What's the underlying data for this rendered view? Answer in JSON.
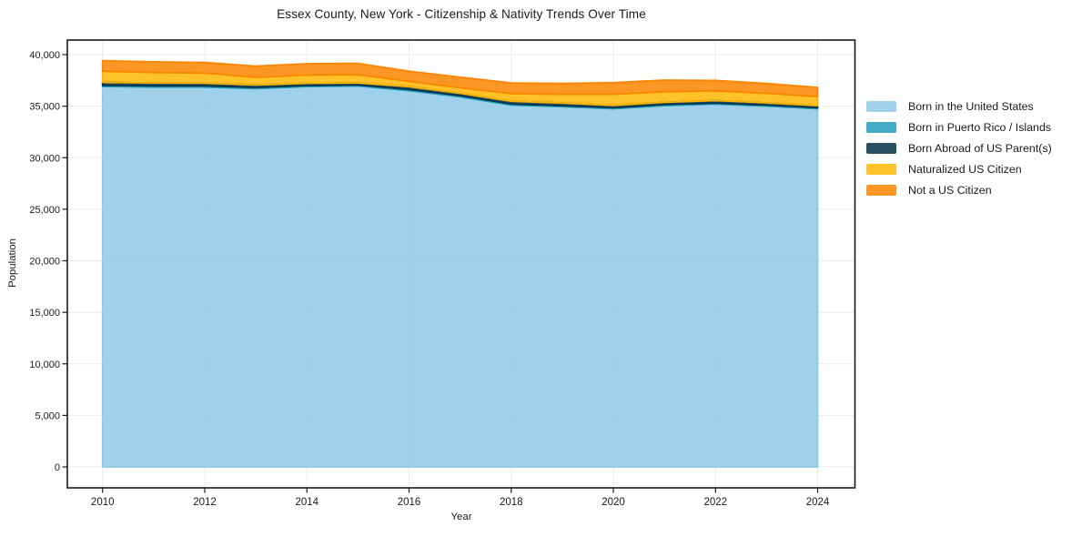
{
  "title": "Essex County, New York - Citizenship & Nativity Trends Over Time",
  "axes": {
    "xlabel": "Year",
    "ylabel": "Population",
    "x_tick_labels": [
      "2010",
      "2012",
      "2014",
      "2016",
      "2018",
      "2020",
      "2022",
      "2024"
    ],
    "y_tick_labels": [
      "0",
      "5,000",
      "10,000",
      "15,000",
      "20,000",
      "25,000",
      "30,000",
      "35,000",
      "40,000"
    ]
  },
  "chart_data": {
    "type": "area",
    "stacked": true,
    "title": "Essex County, New York - Citizenship & Nativity Trends Over Time",
    "xlabel": "Year",
    "ylabel": "Population",
    "x": [
      2010,
      2011,
      2012,
      2013,
      2014,
      2015,
      2016,
      2017,
      2018,
      2019,
      2020,
      2021,
      2022,
      2023,
      2024
    ],
    "series": [
      {
        "name": "Born in the United States",
        "slug": "born-in-the-united-states",
        "color": "#8ecae6",
        "values": [
          36900,
          36850,
          36850,
          36700,
          36900,
          36950,
          36500,
          35900,
          35100,
          34950,
          34750,
          35050,
          35200,
          35000,
          34750
        ]
      },
      {
        "name": "Born in Puerto Rico / Islands",
        "slug": "born-in-puerto-rico-islands",
        "color": "#219ebc",
        "values": [
          120,
          120,
          120,
          110,
          100,
          100,
          130,
          120,
          110,
          100,
          100,
          100,
          100,
          100,
          100
        ]
      },
      {
        "name": "Born Abroad of US Parent(s)",
        "slug": "born-abroad-of-us-parents",
        "color": "#023047",
        "values": [
          290,
          280,
          270,
          250,
          220,
          200,
          260,
          230,
          270,
          250,
          220,
          220,
          240,
          220,
          200
        ]
      },
      {
        "name": "Naturalized US Citizen",
        "slug": "naturalized-us-citizen",
        "color": "#ffb703",
        "values": [
          1080,
          1010,
          980,
          730,
          790,
          800,
          520,
          530,
          740,
          850,
          1080,
          1030,
          950,
          930,
          880
        ]
      },
      {
        "name": "Not a US Citizen",
        "slug": "not-a-us-citizen",
        "color": "#fb8500",
        "values": [
          1020,
          1040,
          1010,
          1090,
          1110,
          1100,
          970,
          1030,
          1030,
          1050,
          1130,
          1130,
          1000,
          950,
          880
        ]
      }
    ],
    "x_ticks": [
      2010,
      2012,
      2014,
      2016,
      2018,
      2020,
      2022,
      2024
    ],
    "y_ticks": [
      0,
      5000,
      10000,
      15000,
      20000,
      25000,
      30000,
      35000,
      40000
    ],
    "xlim": [
      2009.31,
      2024.73
    ],
    "ylim": [
      0,
      40000
    ],
    "grid": true,
    "legend_position": "right-outside",
    "fill_opacity": 0.85,
    "colors": {
      "background": "#ffffff",
      "grid": "#ebebeb",
      "spine": "#1a1a1a",
      "text": "#1a1a1a"
    }
  }
}
